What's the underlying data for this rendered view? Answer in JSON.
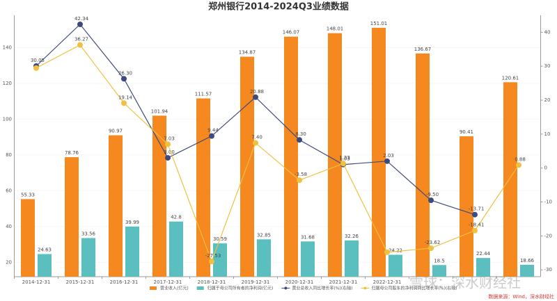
{
  "chart_data": {
    "type": "bar-line",
    "title": "郑州银行2014-2024Q3业绩数据",
    "source": "数据来源：Wind，深水财经社",
    "watermark": "雪球：深水财经社",
    "categories": [
      "2014-12-31",
      "2015-12-31",
      "2016-12-31",
      "2017-12-31",
      "2018-12-31",
      "2019-12-31",
      "2020-12-31",
      "2021-12-31",
      "2022-12-31",
      null,
      null,
      null
    ],
    "series": [
      {
        "name": "营业收入(亿元)",
        "color": "#f5891f",
        "kind": "bar",
        "axis": "y",
        "values": [
          55.33,
          78.76,
          90.97,
          101.94,
          111.57,
          134.87,
          146.07,
          148.01,
          151.01,
          136.67,
          90.41,
          120.61
        ]
      },
      {
        "name": "归属于母公司所有者的净利润(亿元)",
        "color": "#5bbfc0",
        "kind": "bar",
        "axis": "y",
        "values": [
          24.63,
          33.56,
          39.99,
          42.8,
          30.59,
          32.85,
          31.68,
          32.26,
          24.22,
          18.5,
          22.44,
          18.66
        ]
      },
      {
        "name": "营业总收入同比增长率(%)(右轴)",
        "color": "#3d4a7e",
        "kind": "line",
        "axis": "y2",
        "values": [
          30.05,
          42.34,
          26.3,
          3.0,
          9.44,
          20.88,
          8.3,
          1.03,
          2.03,
          -9.5,
          -13.71,
          null
        ],
        "value_labels": [
          "30.05",
          "42.34",
          "26.30",
          "3.00",
          "9.44",
          "20.88",
          "8.30",
          "1.03",
          "2.03",
          "-9.50",
          "-13.71",
          null
        ]
      },
      {
        "name": "归属母公司股东的净利润同比增长率(%)(右轴)",
        "color": "#f0c040",
        "kind": "line",
        "axis": "y2",
        "values": [
          29.46,
          36.27,
          19.14,
          7.03,
          -27.53,
          7.4,
          -3.58,
          1.33,
          -24.8,
          -23.62,
          -18.41,
          0.88
        ],
        "value_labels": [
          null,
          "36.27",
          "19.14",
          "7.03",
          "-27.53",
          "7.40",
          "-3.58",
          "1.33",
          null,
          "-23.62",
          "-18.41",
          "0.88"
        ]
      }
    ],
    "ylim": [
      12,
      158
    ],
    "yticks": [
      20,
      40,
      60,
      80,
      100,
      120,
      140
    ],
    "y2lim": [
      -32,
      45
    ],
    "y2ticks": [
      -30,
      -20,
      -10,
      0,
      10,
      20,
      30,
      40
    ],
    "grid": true
  }
}
